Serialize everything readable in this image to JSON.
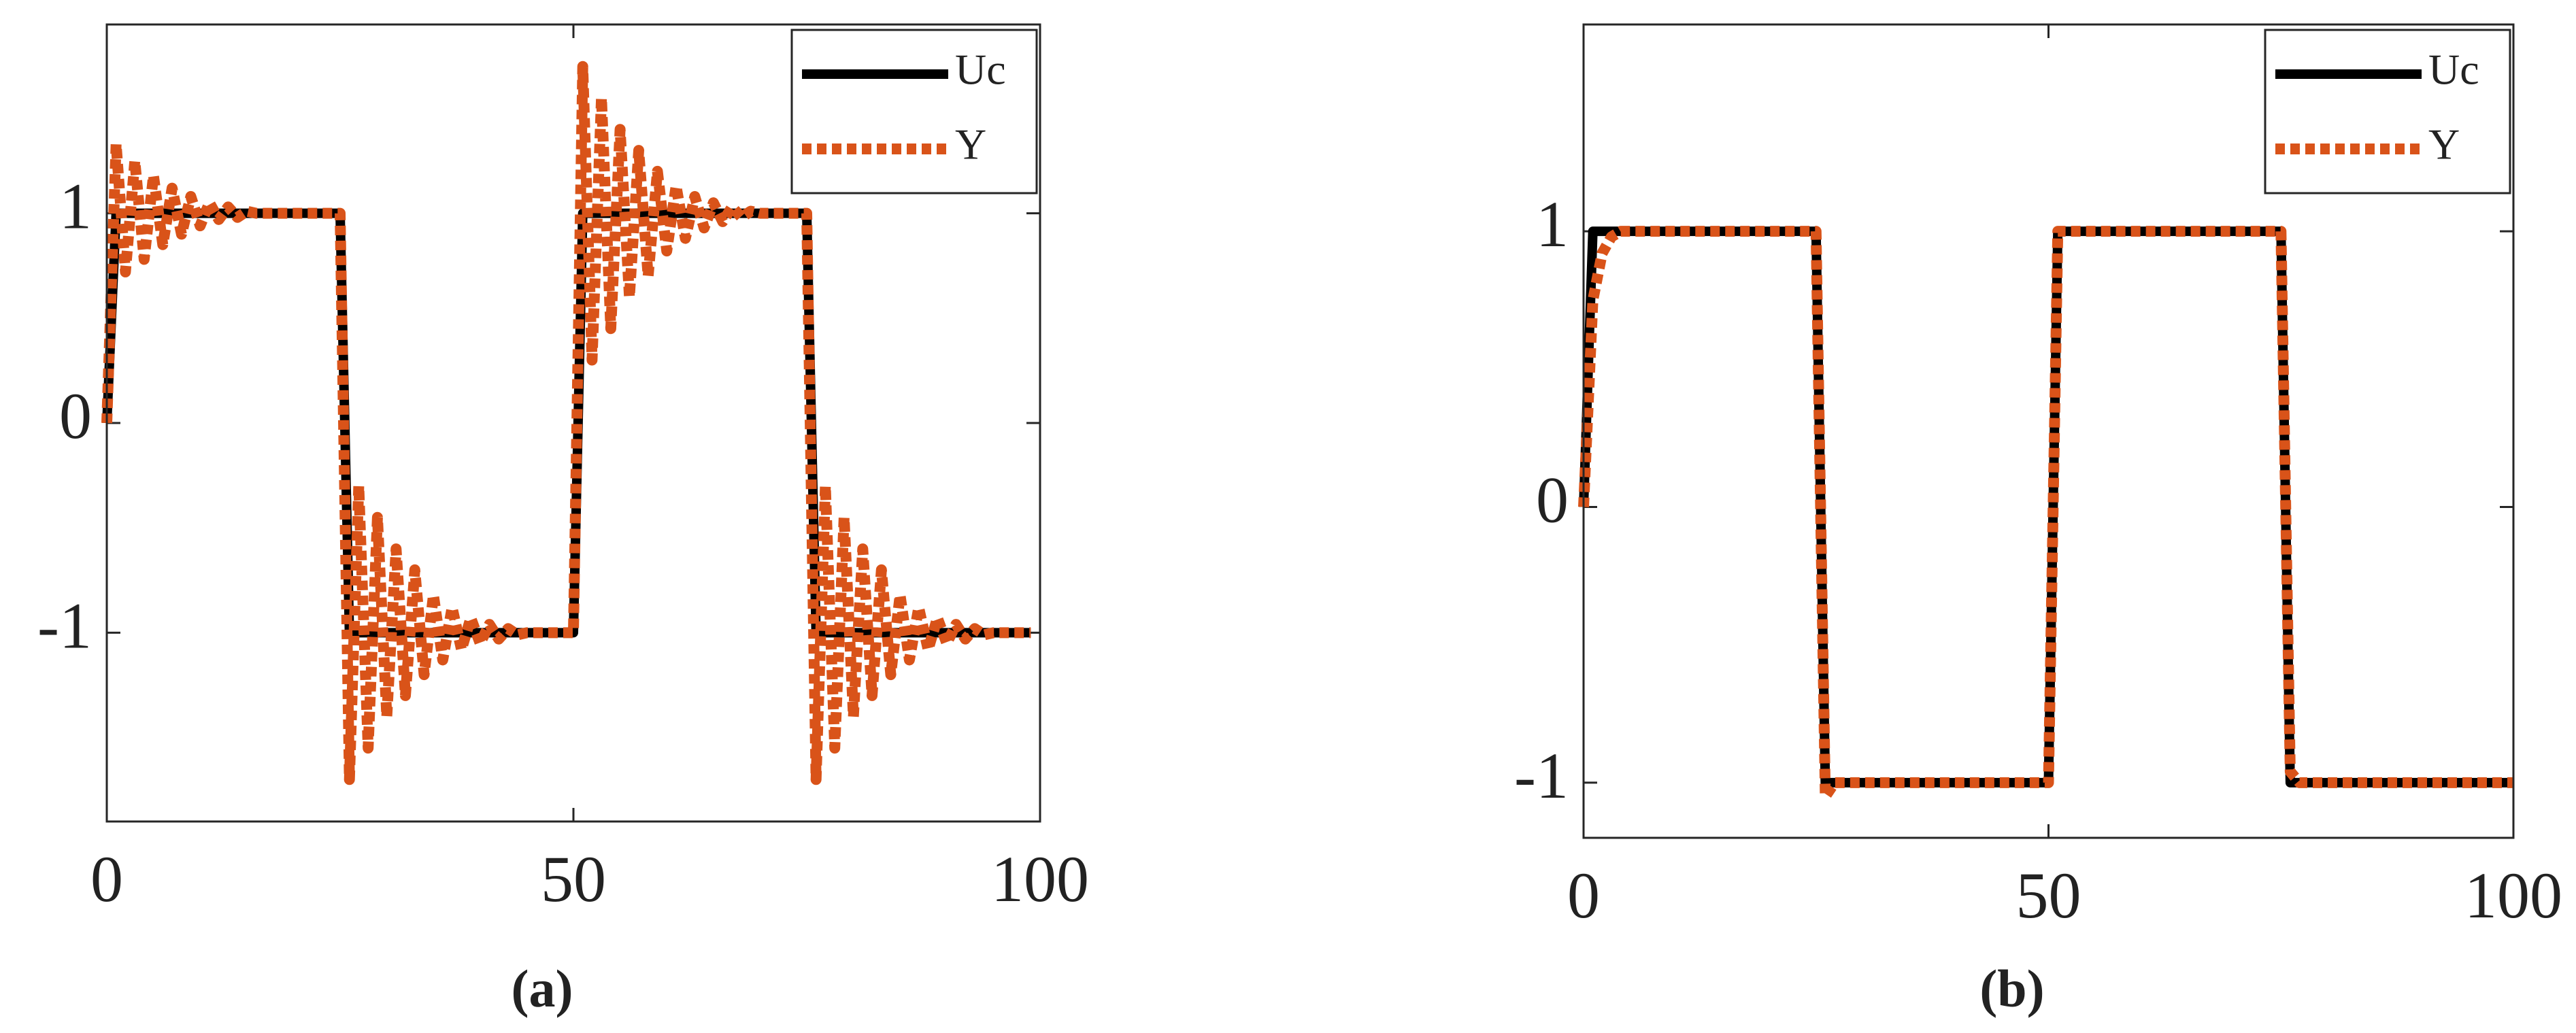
{
  "chart_data": [
    {
      "type": "line",
      "caption": "(a)",
      "x": [
        0,
        1,
        2,
        3,
        4,
        5,
        6,
        7,
        8,
        9,
        10,
        11,
        12,
        13,
        14,
        15,
        16,
        17,
        18,
        19,
        20,
        21,
        22,
        23,
        24,
        25,
        26,
        27,
        28,
        29,
        30,
        31,
        32,
        33,
        34,
        35,
        36,
        37,
        38,
        39,
        40,
        41,
        42,
        43,
        44,
        45,
        46,
        47,
        48,
        49,
        50,
        51,
        52,
        53,
        54,
        55,
        56,
        57,
        58,
        59,
        60,
        61,
        62,
        63,
        64,
        65,
        66,
        67,
        68,
        69,
        70,
        71,
        72,
        73,
        74,
        75,
        76,
        77,
        78,
        79,
        80,
        81,
        82,
        83,
        84,
        85,
        86,
        87,
        88,
        89,
        90,
        91,
        92,
        93,
        94,
        95,
        96,
        97,
        98,
        99
      ],
      "series": [
        {
          "name": "Uc",
          "color": "#000000",
          "linestyle": "solid",
          "values": [
            0,
            1,
            1,
            1,
            1,
            1,
            1,
            1,
            1,
            1,
            1,
            1,
            1,
            1,
            1,
            1,
            1,
            1,
            1,
            1,
            1,
            1,
            1,
            1,
            1,
            1,
            -1,
            -1,
            -1,
            -1,
            -1,
            -1,
            -1,
            -1,
            -1,
            -1,
            -1,
            -1,
            -1,
            -1,
            -1,
            -1,
            -1,
            -1,
            -1,
            -1,
            -1,
            -1,
            -1,
            -1,
            -1,
            1,
            1,
            1,
            1,
            1,
            1,
            1,
            1,
            1,
            1,
            1,
            1,
            1,
            1,
            1,
            1,
            1,
            1,
            1,
            1,
            1,
            1,
            1,
            1,
            1,
            -1,
            -1,
            -1,
            -1,
            -1,
            -1,
            -1,
            -1,
            -1,
            -1,
            -1,
            -1,
            -1,
            -1,
            -1,
            -1,
            -1,
            -1,
            -1,
            -1,
            -1,
            -1,
            -1,
            -1
          ]
        },
        {
          "name": "Y",
          "color": "#d95319",
          "linestyle": "dotted",
          "values": [
            0,
            1.33,
            0.72,
            1.25,
            0.78,
            1.18,
            0.85,
            1.12,
            0.9,
            1.08,
            0.94,
            1.05,
            0.97,
            1.03,
            0.98,
            1.01,
            1,
            1,
            1,
            1,
            1,
            1,
            1,
            1,
            1,
            1,
            -1.7,
            -0.3,
            -1.55,
            -0.45,
            -1.4,
            -0.6,
            -1.3,
            -0.7,
            -1.2,
            -0.82,
            -1.13,
            -0.88,
            -1.08,
            -0.93,
            -1.05,
            -0.96,
            -1.03,
            -0.98,
            -1.01,
            -1,
            -1,
            -1,
            -1,
            -1,
            -1,
            1.7,
            0.3,
            1.55,
            0.45,
            1.4,
            0.6,
            1.3,
            0.7,
            1.2,
            0.82,
            1.13,
            0.88,
            1.08,
            0.93,
            1.05,
            0.96,
            1.03,
            0.98,
            1.01,
            1,
            1,
            1,
            1,
            1,
            1,
            -1.7,
            -0.3,
            -1.55,
            -0.45,
            -1.4,
            -0.6,
            -1.3,
            -0.7,
            -1.2,
            -0.82,
            -1.13,
            -0.88,
            -1.08,
            -0.93,
            -1.05,
            -0.96,
            -1.03,
            -0.98,
            -1.01,
            -1,
            -1,
            -1,
            -1,
            -1
          ]
        }
      ],
      "xlim": [
        0,
        100
      ],
      "ylim": [
        -1.9,
        1.9
      ],
      "xticks": [
        0,
        50,
        100
      ],
      "yticks": [
        -1,
        0,
        1
      ],
      "grid": false,
      "legend": "upper right"
    },
    {
      "type": "line",
      "caption": "(b)",
      "x": [
        0,
        1,
        2,
        3,
        4,
        5,
        6,
        7,
        8,
        9,
        10,
        11,
        12,
        13,
        14,
        15,
        16,
        17,
        18,
        19,
        20,
        21,
        22,
        23,
        24,
        25,
        26,
        27,
        28,
        29,
        30,
        31,
        32,
        33,
        34,
        35,
        36,
        37,
        38,
        39,
        40,
        41,
        42,
        43,
        44,
        45,
        46,
        47,
        48,
        49,
        50,
        51,
        52,
        53,
        54,
        55,
        56,
        57,
        58,
        59,
        60,
        61,
        62,
        63,
        64,
        65,
        66,
        67,
        68,
        69,
        70,
        71,
        72,
        73,
        74,
        75,
        76,
        77,
        78,
        79,
        80,
        81,
        82,
        83,
        84,
        85,
        86,
        87,
        88,
        89,
        90,
        91,
        92,
        93,
        94,
        95,
        96,
        97,
        98,
        99,
        100
      ],
      "series": [
        {
          "name": "Uc",
          "color": "#000000",
          "linestyle": "solid",
          "values": [
            0,
            1,
            1,
            1,
            1,
            1,
            1,
            1,
            1,
            1,
            1,
            1,
            1,
            1,
            1,
            1,
            1,
            1,
            1,
            1,
            1,
            1,
            1,
            1,
            1,
            1,
            -1,
            -1,
            -1,
            -1,
            -1,
            -1,
            -1,
            -1,
            -1,
            -1,
            -1,
            -1,
            -1,
            -1,
            -1,
            -1,
            -1,
            -1,
            -1,
            -1,
            -1,
            -1,
            -1,
            -1,
            -1,
            1,
            1,
            1,
            1,
            1,
            1,
            1,
            1,
            1,
            1,
            1,
            1,
            1,
            1,
            1,
            1,
            1,
            1,
            1,
            1,
            1,
            1,
            1,
            1,
            1,
            -1,
            -1,
            -1,
            -1,
            -1,
            -1,
            -1,
            -1,
            -1,
            -1,
            -1,
            -1,
            -1,
            -1,
            -1,
            -1,
            -1,
            -1,
            -1,
            -1,
            -1,
            -1,
            -1,
            -1,
            -1
          ]
        },
        {
          "name": "Y",
          "color": "#d95319",
          "linestyle": "dotted",
          "values": [
            0,
            0.75,
            0.92,
            0.98,
            1,
            1,
            1,
            1,
            1,
            1,
            1,
            1,
            1,
            1,
            1,
            1,
            1,
            1,
            1,
            1,
            1,
            1,
            1,
            1,
            1,
            1,
            -1.05,
            -1,
            -1,
            -1,
            -1,
            -1,
            -1,
            -1,
            -1,
            -1,
            -1,
            -1,
            -1,
            -1,
            -1,
            -1,
            -1,
            -1,
            -1,
            -1,
            -1,
            -1,
            -1,
            -1,
            -1,
            1,
            1,
            1,
            1,
            1,
            1,
            1,
            1,
            1,
            1,
            1,
            1,
            1,
            1,
            1,
            1,
            1,
            1,
            1,
            1,
            1,
            1,
            1,
            1,
            1,
            -0.96,
            -1,
            -1,
            -1,
            -1,
            -1,
            -1,
            -1,
            -1,
            -1,
            -1,
            -1,
            -1,
            -1,
            -1,
            -1,
            -1,
            -1,
            -1,
            -1,
            -1,
            -1,
            -1,
            -1,
            -1
          ]
        }
      ],
      "xlim": [
        0,
        100
      ],
      "ylim": [
        -1.2,
        1.75
      ],
      "xticks": [
        0,
        50,
        100
      ],
      "yticks": [
        -1,
        0,
        1
      ],
      "grid": false,
      "legend": "upper right"
    }
  ]
}
